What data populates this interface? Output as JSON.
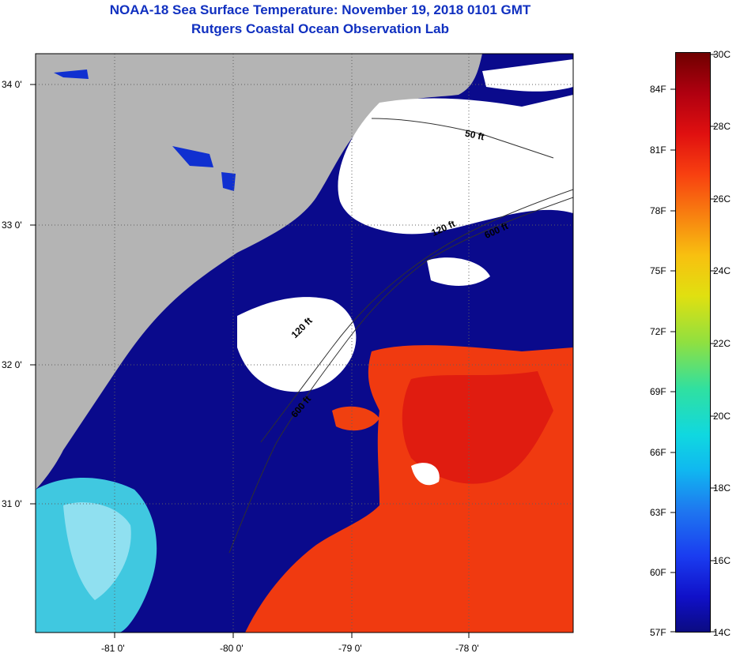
{
  "header": {
    "title": "NOAA-18 Sea Surface Temperature:  November 19, 2018 0101 GMT",
    "subtitle": "Rutgers Coastal Ocean Observation Lab"
  },
  "map": {
    "lat_labels": [
      "34 0'",
      "33 0'",
      "32 0'",
      "31 0'"
    ],
    "lon_labels": [
      "-81 0'",
      "-80 0'",
      "-79 0'",
      "-78 0'"
    ],
    "isobath_labels": [
      "50 ft",
      "120 ft",
      "600 ft",
      "120 ft",
      "600 ft"
    ],
    "colors": {
      "land": "#b4b4b4",
      "cloud": "#ffffff",
      "cold_water": "#0a0a8c",
      "warm_water": "#f03010",
      "shelf_water": "#30c0e0"
    }
  },
  "colorbar": {
    "celsius_labels": [
      "30C",
      "28C",
      "26C",
      "24C",
      "22C",
      "20C",
      "18C",
      "16C",
      "14C"
    ],
    "fahrenheit_labels": [
      "84F",
      "81F",
      "78F",
      "75F",
      "72F",
      "69F",
      "66F",
      "63F",
      "60F",
      "57F"
    ]
  }
}
